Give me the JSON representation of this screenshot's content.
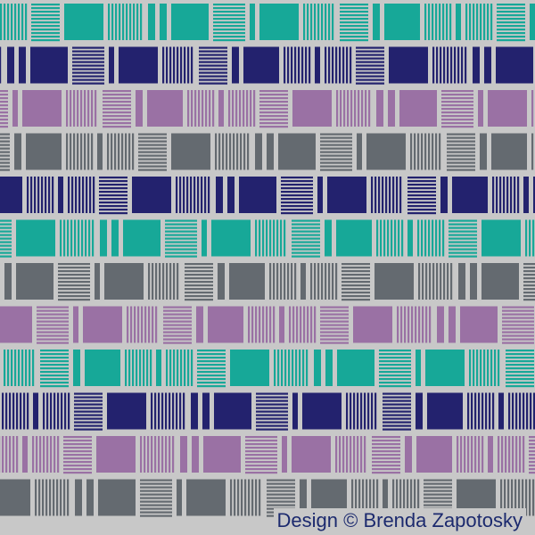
{
  "credit": "Design © Brenda Zapotosky",
  "palette": {
    "background": "#c8c8c8",
    "teal": "#17a898",
    "navy": "#23226e",
    "purple": "#9a71a4",
    "gray": "#646a70"
  },
  "pattern": {
    "rows": [
      "teal",
      "navy",
      "purple",
      "gray",
      "navy",
      "teal",
      "gray",
      "purple",
      "teal",
      "navy",
      "purple",
      "gray"
    ],
    "tile_kinds": [
      "solid",
      "horizontal-stripes",
      "vertical-stripes",
      "thin-bar",
      "wide-bar"
    ]
  }
}
